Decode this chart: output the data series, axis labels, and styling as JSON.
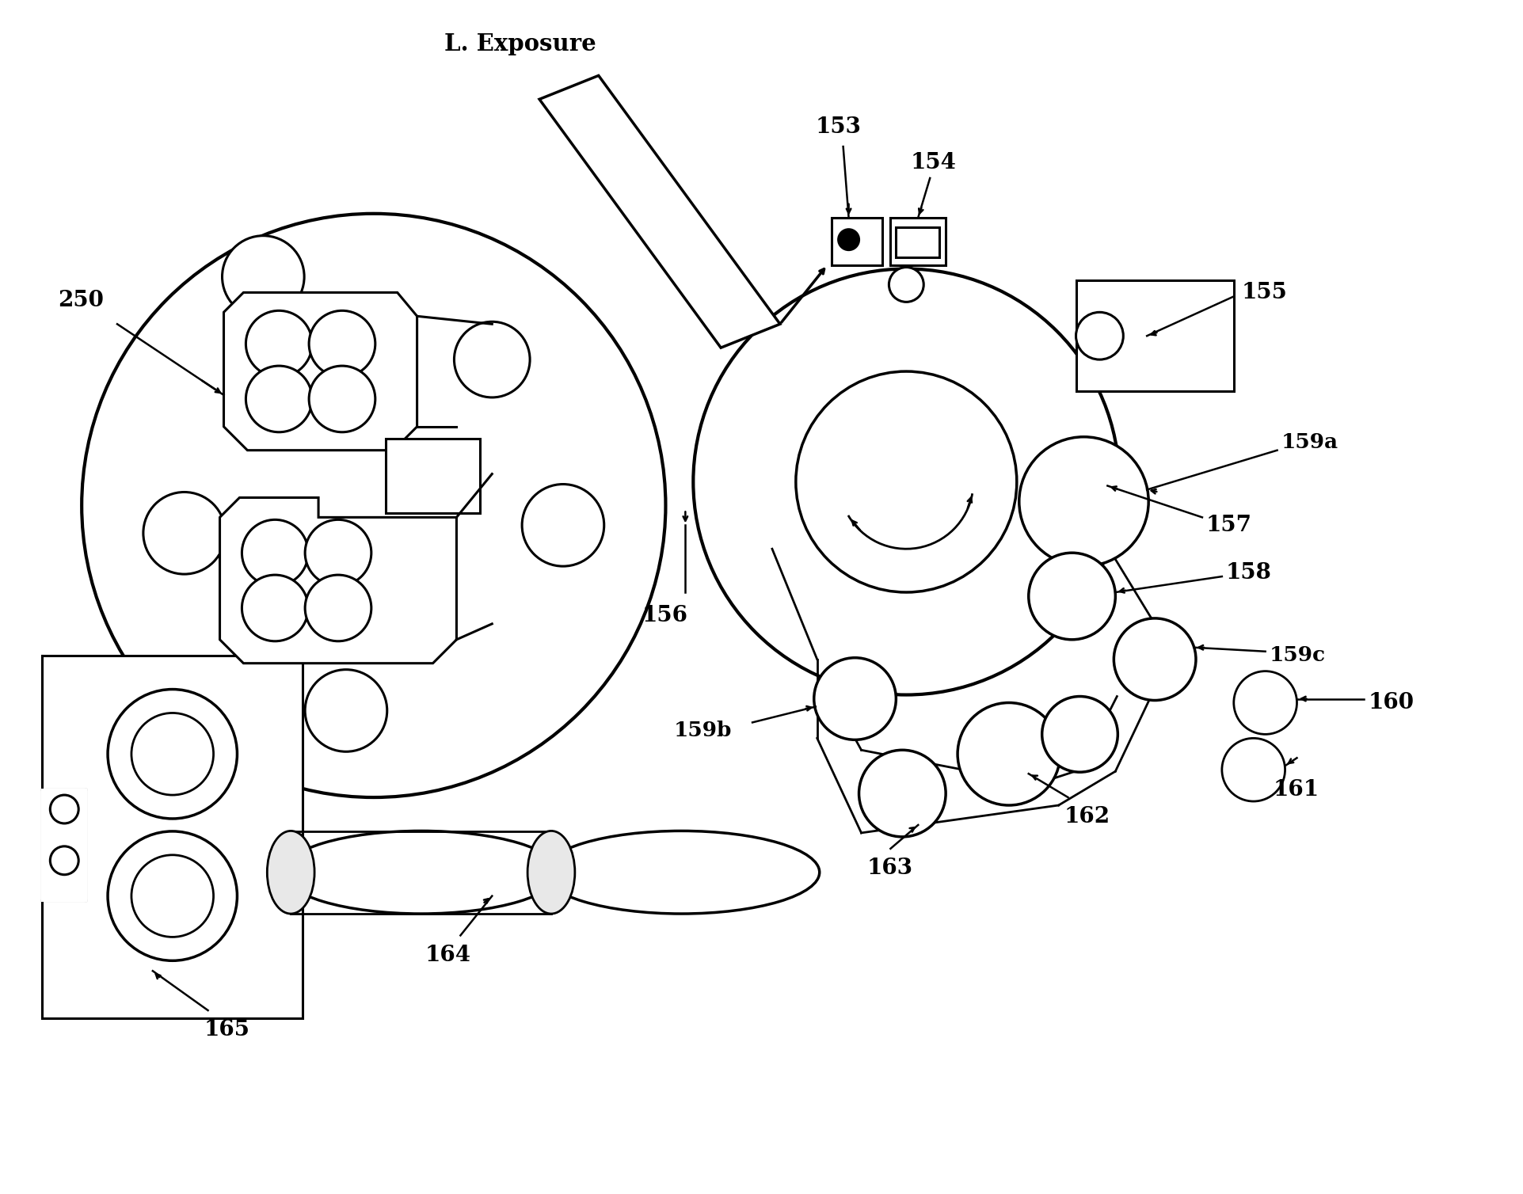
{
  "bg_color": "#ffffff",
  "line_color": "#000000",
  "fig_width": 19.24,
  "fig_height": 15.08,
  "dpi": 100,
  "xlim": [
    0,
    19.24
  ],
  "ylim": [
    0,
    15.08
  ]
}
